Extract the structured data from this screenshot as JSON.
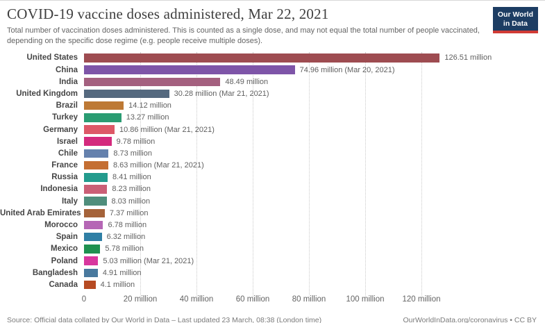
{
  "header": {
    "title": "COVID-19 vaccine doses administered, Mar 22, 2021",
    "subtitle": "Total number of vaccination doses administered. This is counted as a single dose, and may not equal the total number of people vaccinated, depending on the specific dose regime (e.g. people receive multiple doses).",
    "logo": {
      "line1": "Our World",
      "line2": "in Data",
      "bg_color": "#1d3d63",
      "accent_color": "#d13b35"
    }
  },
  "chart_data": {
    "type": "bar",
    "orientation": "horizontal",
    "title": "COVID-19 vaccine doses administered, Mar 22, 2021",
    "xlabel": "",
    "ylabel": "",
    "unit": "million doses",
    "xlim": [
      0,
      160
    ],
    "grid": true,
    "gridline_color": "#c9c9c9",
    "ticks": [
      {
        "value": 0,
        "label": "0"
      },
      {
        "value": 20,
        "label": "20 million"
      },
      {
        "value": 40,
        "label": "40 million"
      },
      {
        "value": 60,
        "label": "60 million"
      },
      {
        "value": 80,
        "label": "80 million"
      },
      {
        "value": 100,
        "label": "100 million"
      },
      {
        "value": 120,
        "label": "120 million"
      }
    ],
    "rows": [
      {
        "country": "United States",
        "value": 126.51,
        "label": "126.51 million",
        "color": "#9e4c51"
      },
      {
        "country": "China",
        "value": 74.96,
        "label": "74.96 million (Mar 20, 2021)",
        "color": "#7e55a8"
      },
      {
        "country": "India",
        "value": 48.49,
        "label": "48.49 million",
        "color": "#a4607f"
      },
      {
        "country": "United Kingdom",
        "value": 30.28,
        "label": "30.28 million (Mar 21, 2021)",
        "color": "#55697f"
      },
      {
        "country": "Brazil",
        "value": 14.12,
        "label": "14.12 million",
        "color": "#bd7935"
      },
      {
        "country": "Turkey",
        "value": 13.27,
        "label": "13.27 million",
        "color": "#2a9c72"
      },
      {
        "country": "Germany",
        "value": 10.86,
        "label": "10.86 million (Mar 21, 2021)",
        "color": "#dd5867"
      },
      {
        "country": "Israel",
        "value": 9.78,
        "label": "9.78 million",
        "color": "#d42a7d"
      },
      {
        "country": "Chile",
        "value": 8.73,
        "label": "8.73 million",
        "color": "#6581ad"
      },
      {
        "country": "France",
        "value": 8.63,
        "label": "8.63 million (Mar 21, 2021)",
        "color": "#c46e32"
      },
      {
        "country": "Russia",
        "value": 8.41,
        "label": "8.41 million",
        "color": "#239b8d"
      },
      {
        "country": "Indonesia",
        "value": 8.23,
        "label": "8.23 million",
        "color": "#ca5f76"
      },
      {
        "country": "Italy",
        "value": 8.03,
        "label": "8.03 million",
        "color": "#4f8e7c"
      },
      {
        "country": "United Arab Emirates",
        "value": 7.37,
        "label": "7.37 million",
        "color": "#a5633a"
      },
      {
        "country": "Morocco",
        "value": 6.78,
        "label": "6.78 million",
        "color": "#b566b5"
      },
      {
        "country": "Spain",
        "value": 6.32,
        "label": "6.32 million",
        "color": "#2f7fa5"
      },
      {
        "country": "Mexico",
        "value": 5.78,
        "label": "5.78 million",
        "color": "#1f9150"
      },
      {
        "country": "Poland",
        "value": 5.03,
        "label": "5.03 million (Mar 21, 2021)",
        "color": "#d8379e"
      },
      {
        "country": "Bangladesh",
        "value": 4.91,
        "label": "4.91 million",
        "color": "#49799e"
      },
      {
        "country": "Canada",
        "value": 4.1,
        "label": "4.1 million",
        "color": "#b64a22"
      }
    ]
  },
  "footer": {
    "source": "Source: Official data collated by Our World in Data – Last updated 23 March, 08:38 (London time)",
    "link": "OurWorldInData.org/coronavirus",
    "license": " • CC BY"
  }
}
